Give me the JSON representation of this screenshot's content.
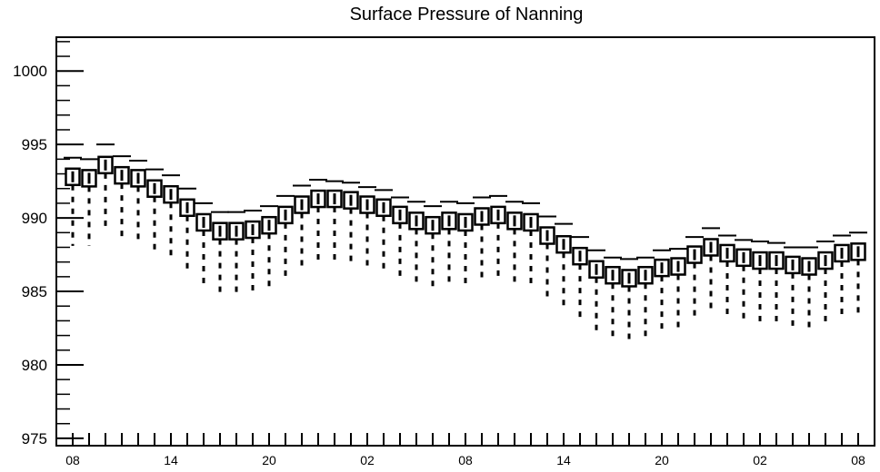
{
  "chart_data": {
    "type": "box",
    "title": "Surface Pressure of Nanning",
    "xlabel": "",
    "ylabel": "",
    "ylim": [
      974.5,
      1002.3
    ],
    "yticks": [
      975,
      980,
      985,
      990,
      995,
      1000
    ],
    "ytick_labels": [
      "975",
      "980",
      "985",
      "990",
      "995",
      "1000"
    ],
    "xtick_labels": [
      "08",
      "14",
      "20",
      "02",
      "08",
      "14",
      "20",
      "02",
      "08"
    ],
    "grid": false,
    "color": "#000000",
    "series": [
      {
        "median": [
          992.8,
          992.7,
          993.6,
          992.9,
          992.7,
          992.0,
          991.6,
          990.7,
          989.7,
          989.1,
          989.1,
          989.2,
          989.5,
          990.2,
          990.9,
          991.3,
          991.3,
          991.2,
          990.9,
          990.7,
          990.2,
          989.8,
          989.5,
          989.8,
          989.7,
          990.1,
          990.2,
          989.8,
          989.7,
          988.8,
          988.2,
          987.4,
          986.5,
          986.1,
          985.9,
          986.1,
          986.6,
          986.7,
          987.5,
          988.0,
          987.6,
          987.3,
          987.1,
          987.1,
          986.8,
          986.7,
          987.1,
          987.6,
          987.7
        ],
        "whisker_high": [
          994.1,
          994.0,
          995.0,
          994.2,
          993.9,
          993.3,
          992.9,
          992.0,
          991.0,
          990.4,
          990.4,
          990.5,
          990.8,
          991.5,
          992.2,
          992.6,
          992.5,
          992.4,
          992.1,
          991.9,
          991.4,
          991.1,
          990.8,
          991.1,
          991.0,
          991.4,
          991.5,
          991.1,
          991.0,
          990.1,
          989.6,
          988.7,
          987.8,
          987.3,
          987.2,
          987.3,
          987.8,
          987.9,
          988.7,
          989.3,
          988.8,
          988.5,
          988.4,
          988.3,
          988.0,
          988.0,
          988.4,
          988.8,
          989.0
        ],
        "whisker_low": [
          988.1,
          988.1,
          989.1,
          988.4,
          988.2,
          987.7,
          987.2,
          986.3,
          985.5,
          984.8,
          984.8,
          984.9,
          985.2,
          985.8,
          986.5,
          986.8,
          986.8,
          986.7,
          986.4,
          986.2,
          985.8,
          985.4,
          985.1,
          985.3,
          985.2,
          985.7,
          985.8,
          985.4,
          985.3,
          984.5,
          983.8,
          983.0,
          982.2,
          981.7,
          981.6,
          981.7,
          982.2,
          982.4,
          983.1,
          983.6,
          983.3,
          982.9,
          982.7,
          982.6,
          982.4,
          982.3,
          982.6,
          983.2,
          983.3
        ]
      }
    ]
  }
}
